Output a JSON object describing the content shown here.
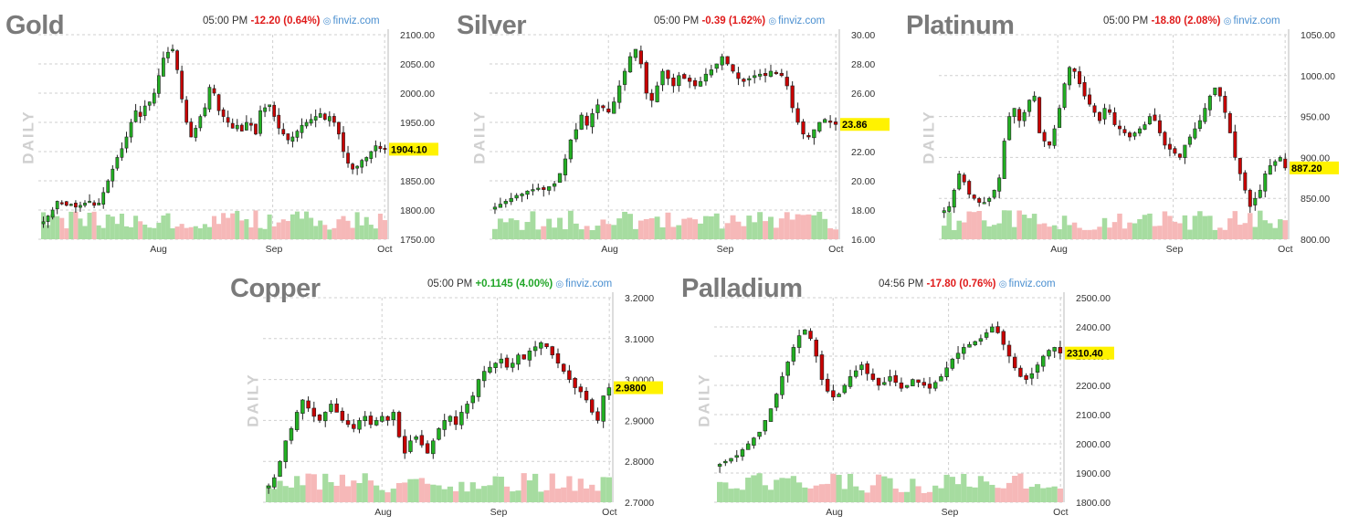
{
  "charts": [
    {
      "id": "gold",
      "title": "Gold",
      "vertical_label": "DAILY",
      "time": "05:00 PM",
      "change": "-12.20 (0.64%)",
      "direction": "down",
      "source": "finviz.com",
      "last_price": "1904.10",
      "y_ticks": [
        "2100.00",
        "2050.00",
        "2000.00",
        "1950.00",
        "1900.00",
        "1850.00",
        "1800.00",
        "1750.00"
      ],
      "x_ticks": [
        "Aug",
        "Sep",
        "Oct"
      ]
    },
    {
      "id": "silver",
      "title": "Silver",
      "vertical_label": "DAILY",
      "time": "05:00 PM",
      "change": "-0.39 (1.62%)",
      "direction": "down",
      "source": "finviz.com",
      "last_price": "23.86",
      "y_ticks": [
        "30.00",
        "28.00",
        "26.00",
        "24.00",
        "22.00",
        "20.00",
        "18.00",
        "16.00"
      ],
      "x_ticks": [
        "Aug",
        "Sep",
        "Oct"
      ]
    },
    {
      "id": "platinum",
      "title": "Platinum",
      "vertical_label": "DAILY",
      "time": "05:00 PM",
      "change": "-18.80 (2.08%)",
      "direction": "down",
      "source": "finviz.com",
      "last_price": "887.20",
      "y_ticks": [
        "1050.00",
        "1000.00",
        "950.00",
        "900.00",
        "850.00",
        "800.00"
      ],
      "x_ticks": [
        "Aug",
        "Sep",
        "Oct"
      ]
    },
    {
      "id": "copper",
      "title": "Copper",
      "vertical_label": "DAILY",
      "time": "05:00 PM",
      "change": "+0.1145 (4.00%)",
      "direction": "up",
      "source": "finviz.com",
      "last_price": "2.9800",
      "y_ticks": [
        "3.2000",
        "3.1000",
        "3.0000",
        "2.9000",
        "2.8000",
        "2.7000"
      ],
      "x_ticks": [
        "Aug",
        "Sep",
        "Oct"
      ]
    },
    {
      "id": "palladium",
      "title": "Palladium",
      "vertical_label": "DAILY",
      "time": "04:56 PM",
      "change": "-17.80 (0.76%)",
      "direction": "down",
      "source": "finviz.com",
      "last_price": "2310.40",
      "y_ticks": [
        "2500.00",
        "2400.00",
        "2300.00",
        "2200.00",
        "2100.00",
        "2000.00",
        "1900.00",
        "1800.00"
      ],
      "x_ticks": [
        "Aug",
        "Sep",
        "Oct"
      ]
    }
  ],
  "chart_data": [
    {
      "type": "candlestick",
      "title": "Gold",
      "ylim": [
        1750,
        2100
      ],
      "x_ticks": [
        "Aug",
        "Sep",
        "Oct"
      ],
      "close_series": [
        1780,
        1790,
        1800,
        1815,
        1812,
        1808,
        1810,
        1805,
        1808,
        1812,
        1815,
        1808,
        1812,
        1830,
        1850,
        1870,
        1890,
        1905,
        1925,
        1950,
        1970,
        1960,
        1978,
        1985,
        2000,
        2030,
        2060,
        2070,
        2075,
        2040,
        1990,
        1950,
        1925,
        1940,
        1960,
        1975,
        2010,
        2000,
        1970,
        1960,
        1950,
        1940,
        1945,
        1935,
        1950,
        1945,
        1930,
        1970,
        1975,
        1980,
        1960,
        1940,
        1930,
        1920,
        1925,
        1935,
        1945,
        1950,
        1955,
        1960,
        1965,
        1955,
        1960,
        1950,
        1930,
        1900,
        1880,
        1870,
        1875,
        1885,
        1890,
        1900,
        1910,
        1905,
        1904.1
      ],
      "last_value": 1904.1
    },
    {
      "type": "candlestick",
      "title": "Silver",
      "ylim": [
        16,
        30
      ],
      "x_ticks": [
        "Aug",
        "Sep",
        "Oct"
      ],
      "close_series": [
        18.2,
        18.4,
        18.6,
        18.8,
        19.0,
        19.1,
        19.3,
        19.4,
        19.5,
        19.4,
        19.6,
        19.8,
        20.5,
        21.5,
        22.8,
        23.5,
        24.5,
        23.8,
        24.6,
        25.2,
        25.0,
        24.7,
        25.4,
        26.5,
        27.5,
        28.5,
        29.0,
        28.0,
        26.0,
        25.5,
        26.5,
        27.5,
        27.0,
        26.5,
        27.2,
        27.0,
        26.8,
        26.5,
        26.8,
        27.3,
        27.6,
        28.0,
        28.5,
        28.0,
        27.5,
        27.0,
        26.8,
        27.0,
        27.2,
        27.3,
        27.2,
        27.5,
        27.4,
        27.2,
        26.5,
        25.0,
        24.0,
        23.2,
        23.0,
        23.5,
        24.0,
        24.2,
        24.0,
        23.86
      ],
      "last_value": 23.86
    },
    {
      "type": "candlestick",
      "title": "Platinum",
      "ylim": [
        800,
        1050
      ],
      "x_ticks": [
        "Aug",
        "Sep",
        "Oct"
      ],
      "close_series": [
        835,
        840,
        860,
        880,
        870,
        855,
        850,
        845,
        845,
        850,
        860,
        875,
        920,
        950,
        960,
        945,
        955,
        970,
        975,
        930,
        920,
        915,
        935,
        960,
        990,
        1010,
        1005,
        990,
        975,
        965,
        955,
        945,
        960,
        955,
        940,
        935,
        930,
        925,
        930,
        935,
        940,
        950,
        945,
        930,
        915,
        910,
        905,
        900,
        915,
        925,
        935,
        945,
        960,
        975,
        985,
        975,
        955,
        930,
        900,
        880,
        860,
        840,
        850,
        860,
        880,
        890,
        895,
        900,
        887.2
      ],
      "last_value": 887.2
    },
    {
      "type": "candlestick",
      "title": "Copper",
      "ylim": [
        2.7,
        3.2
      ],
      "x_ticks": [
        "Aug",
        "Sep",
        "Oct"
      ],
      "close_series": [
        2.74,
        2.76,
        2.8,
        2.85,
        2.88,
        2.92,
        2.95,
        2.93,
        2.91,
        2.9,
        2.92,
        2.94,
        2.92,
        2.9,
        2.89,
        2.88,
        2.9,
        2.91,
        2.89,
        2.9,
        2.91,
        2.9,
        2.92,
        2.86,
        2.82,
        2.85,
        2.86,
        2.84,
        2.82,
        2.85,
        2.88,
        2.9,
        2.91,
        2.89,
        2.92,
        2.94,
        2.96,
        3.0,
        3.02,
        3.03,
        3.04,
        3.05,
        3.03,
        3.04,
        3.06,
        3.05,
        3.07,
        3.08,
        3.09,
        3.08,
        3.06,
        3.04,
        3.02,
        3.0,
        2.98,
        2.97,
        2.95,
        2.92,
        2.9,
        2.96,
        2.98
      ],
      "last_value": 2.98
    },
    {
      "type": "candlestick",
      "title": "Palladium",
      "ylim": [
        1800,
        2500
      ],
      "x_ticks": [
        "Aug",
        "Sep",
        "Oct"
      ],
      "close_series": [
        1930,
        1940,
        1950,
        1960,
        1980,
        2000,
        2020,
        2040,
        2080,
        2120,
        2170,
        2230,
        2280,
        2330,
        2370,
        2390,
        2360,
        2300,
        2220,
        2180,
        2160,
        2170,
        2200,
        2230,
        2250,
        2270,
        2240,
        2220,
        2200,
        2210,
        2230,
        2210,
        2190,
        2200,
        2220,
        2210,
        2200,
        2190,
        2210,
        2230,
        2260,
        2290,
        2310,
        2330,
        2340,
        2350,
        2360,
        2380,
        2400,
        2380,
        2340,
        2300,
        2260,
        2230,
        2220,
        2240,
        2270,
        2300,
        2320,
        2330,
        2310.4
      ],
      "last_value": 2310.4
    }
  ],
  "style": {
    "up_color": "#22b022",
    "down_color": "#c80000",
    "vol_up_color": "#a6dca0",
    "vol_down_color": "#f6b8b8",
    "last_price_bg": "#fff200",
    "grid_color": "#cfcfcf"
  }
}
